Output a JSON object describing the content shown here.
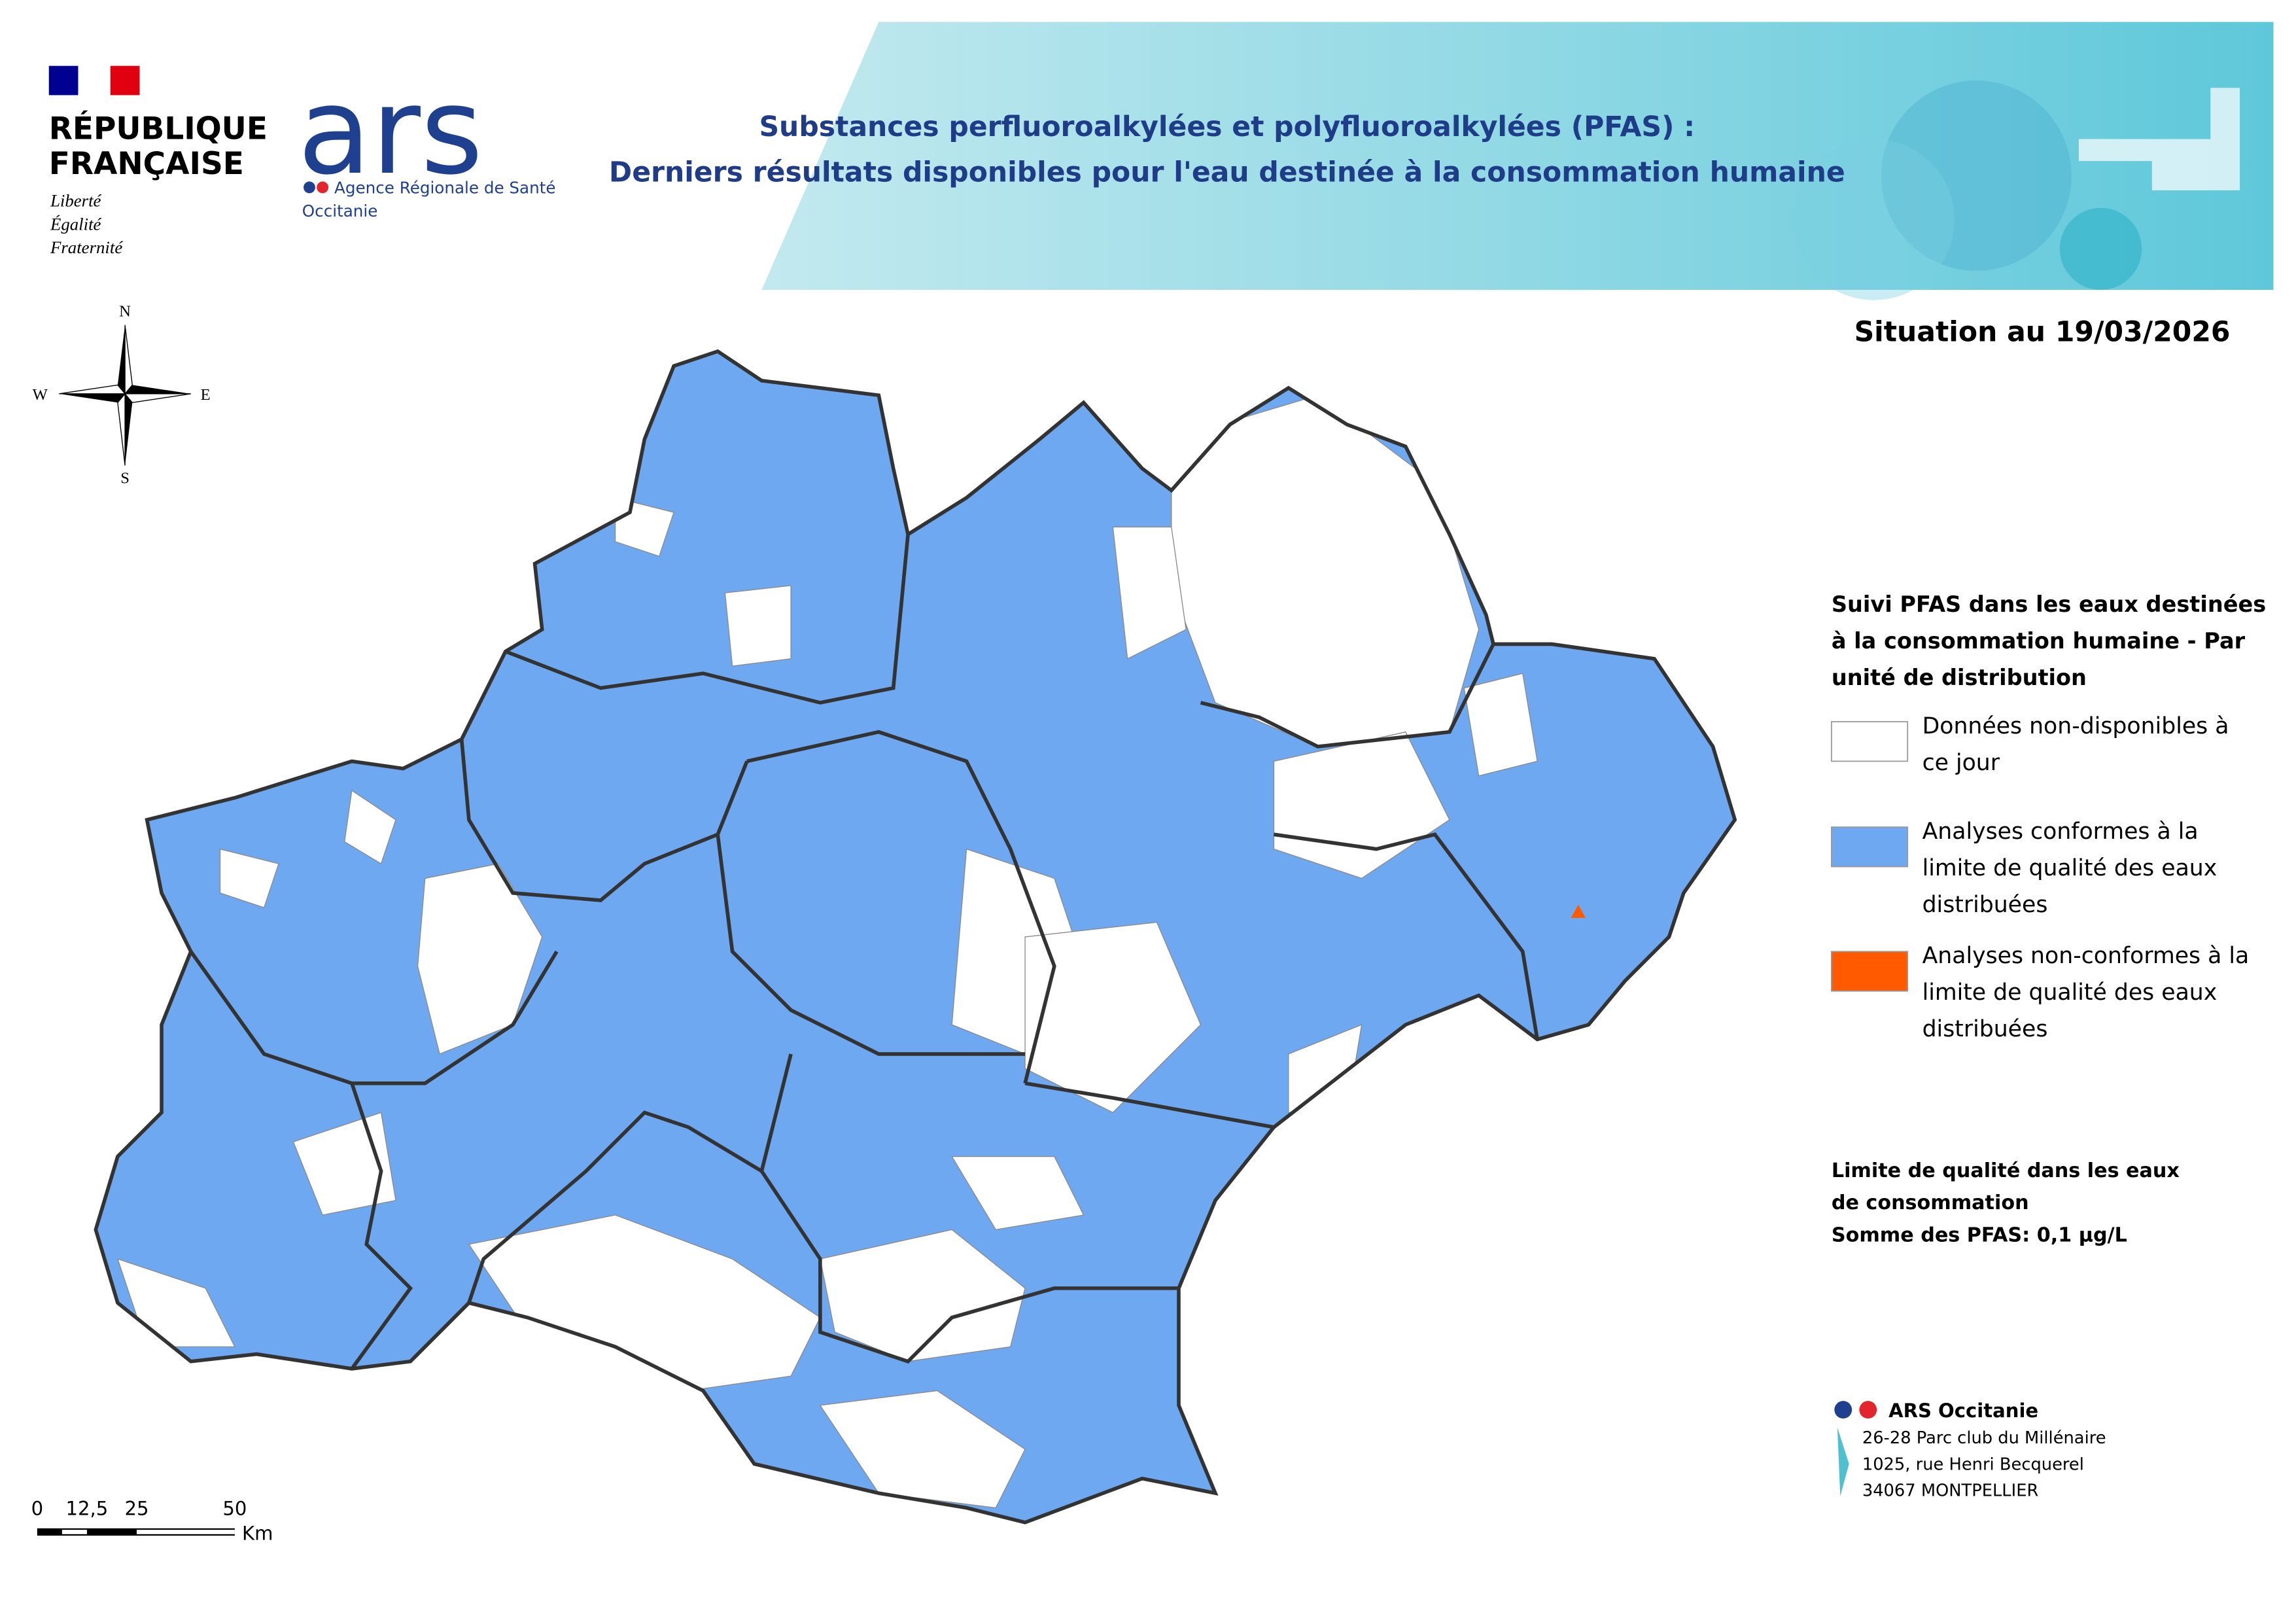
{
  "header": {
    "republic": {
      "line1": "RÉPUBLIQUE",
      "line2": "FRANÇAISE",
      "motto": [
        "Liberté",
        "Égalité",
        "Fraternité"
      ]
    },
    "ars_logo": {
      "mark": "ars",
      "agency": "Agence Régionale de Santé",
      "region": "Occitanie"
    },
    "title": [
      "Substances perfluoroalkylées et polyfluoroalkylées (PFAS) :",
      "Derniers résultats disponibles pour l'eau destinée à la consommation humaine"
    ]
  },
  "situation": "Situation au 19/03/2026",
  "compass": {
    "north": "N",
    "west": "W",
    "east": "E",
    "south": "S"
  },
  "legend": {
    "title": [
      "Suivi PFAS dans les eaux destinées",
      "à la consommation humaine - Par",
      "unité de distribution"
    ],
    "items": [
      {
        "label": [
          "Données non-disponibles à",
          "ce jour"
        ],
        "color": "#ffffff"
      },
      {
        "label": [
          "Analyses conformes à la",
          "limite de qualité des eaux",
          "distribuées"
        ],
        "color": "#6ea8f0"
      },
      {
        "label": [
          "Analyses non-conformes à la",
          "limite de qualité des eaux",
          "distribuées"
        ],
        "color": "#ff5a00"
      }
    ]
  },
  "quality_limit": [
    "Limite de qualité dans les eaux",
    "de consommation",
    "Somme des PFAS: 0,1 µg/L"
  ],
  "address": {
    "name": "ARS Occitanie",
    "lines": [
      "26-28 Parc club du Millénaire",
      "1025, rue Henri Becquerel",
      "34067 MONTPELLIER"
    ]
  },
  "scale_bar": {
    "labels": [
      "0",
      "12,5",
      "25",
      "50"
    ],
    "unit": "Km"
  }
}
